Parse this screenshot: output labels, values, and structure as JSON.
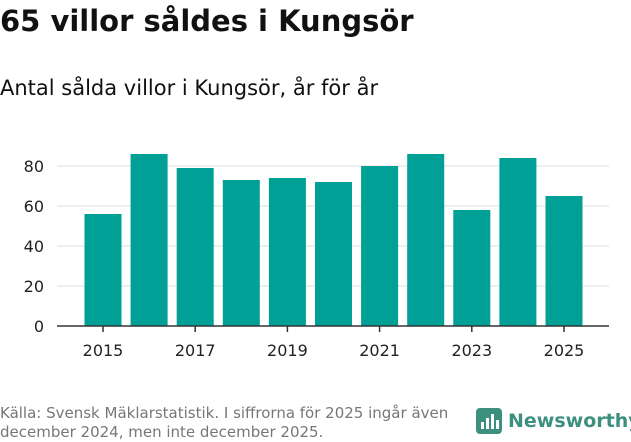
{
  "title": "65 villor såldes i Kungsör",
  "subtitle": "Antal sålda villor i Kungsör, år för år",
  "source": "Källa: Svensk Mäklarstatistik. I siffrorna för 2025 ingår även december 2024, men inte december 2025.",
  "brand": "Newsworthy",
  "colors": {
    "bar": "#00a096",
    "grid": "#dddddd",
    "axis": "#333333",
    "brand": "#3d8f7e"
  },
  "chart_data": {
    "type": "bar",
    "title": "65 villor såldes i Kungsör",
    "subtitle": "Antal sålda villor i Kungsör, år för år",
    "xlabel": "",
    "ylabel": "",
    "categories": [
      "2015",
      "2016",
      "2017",
      "2018",
      "2019",
      "2020",
      "2021",
      "2022",
      "2023",
      "2024",
      "2025"
    ],
    "values": [
      56,
      86,
      79,
      73,
      74,
      72,
      80,
      86,
      58,
      84,
      65
    ],
    "ylim": [
      0,
      90
    ],
    "yticks": [
      0,
      20,
      40,
      60,
      80
    ],
    "xticks": [
      "2015",
      "2017",
      "2019",
      "2021",
      "2023",
      "2025"
    ],
    "grid": true
  }
}
